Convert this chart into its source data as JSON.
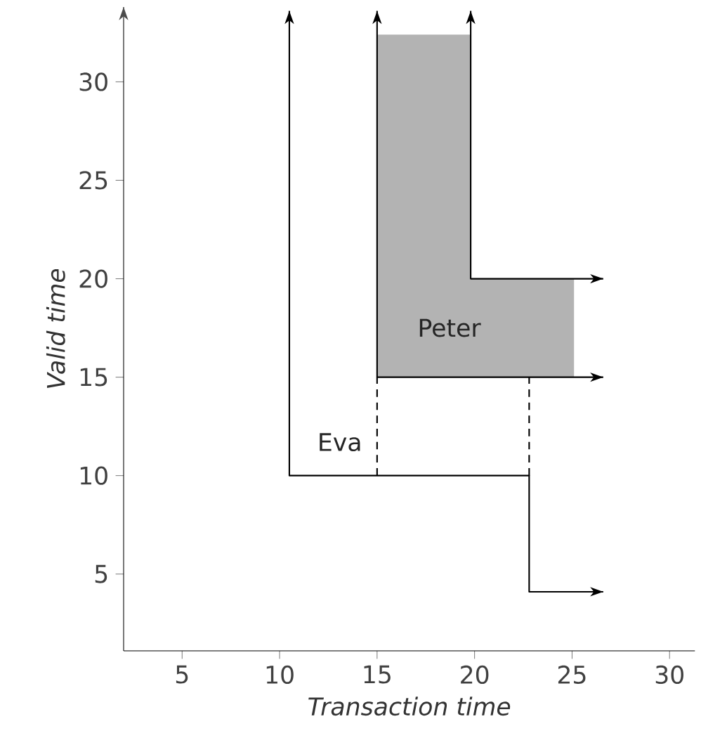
{
  "chart_data": {
    "type": "line",
    "xlabel": "Transaction time",
    "ylabel": "Valid time",
    "xlim": [
      2,
      31.3
    ],
    "ylim": [
      1.1,
      33.8
    ],
    "xticks": [
      5,
      10,
      15,
      20,
      25,
      30
    ],
    "yticks": [
      5,
      10,
      15,
      20,
      25,
      30
    ],
    "series": [
      {
        "type": "area",
        "name": "Peter",
        "color": "#b3b3b3",
        "x": [
          15,
          15,
          19.8,
          19.8,
          25.1,
          25.1
        ],
        "values": [
          15,
          32.4,
          32.4,
          20,
          20,
          15
        ]
      },
      {
        "name": "Eva",
        "color": "#000000",
        "x": [
          10.5,
          10.5,
          22.8,
          22.8,
          26.6
        ],
        "values": [
          33.6,
          10,
          10,
          4.1,
          4.1
        ]
      },
      {
        "color": "#000000",
        "x": [
          15,
          15,
          26.6
        ],
        "values": [
          33.6,
          15,
          15
        ]
      },
      {
        "color": "#000000",
        "x": [
          19.8,
          19.8,
          26.6
        ],
        "values": [
          33.6,
          20,
          20
        ]
      },
      {
        "color": "#000000",
        "line_style": "dashed",
        "x": [
          15,
          15
        ],
        "values": [
          10,
          15
        ]
      },
      {
        "color": "#000000",
        "line_style": "dashed",
        "x": [
          22.8,
          22.8
        ],
        "values": [
          10,
          15
        ]
      }
    ]
  }
}
